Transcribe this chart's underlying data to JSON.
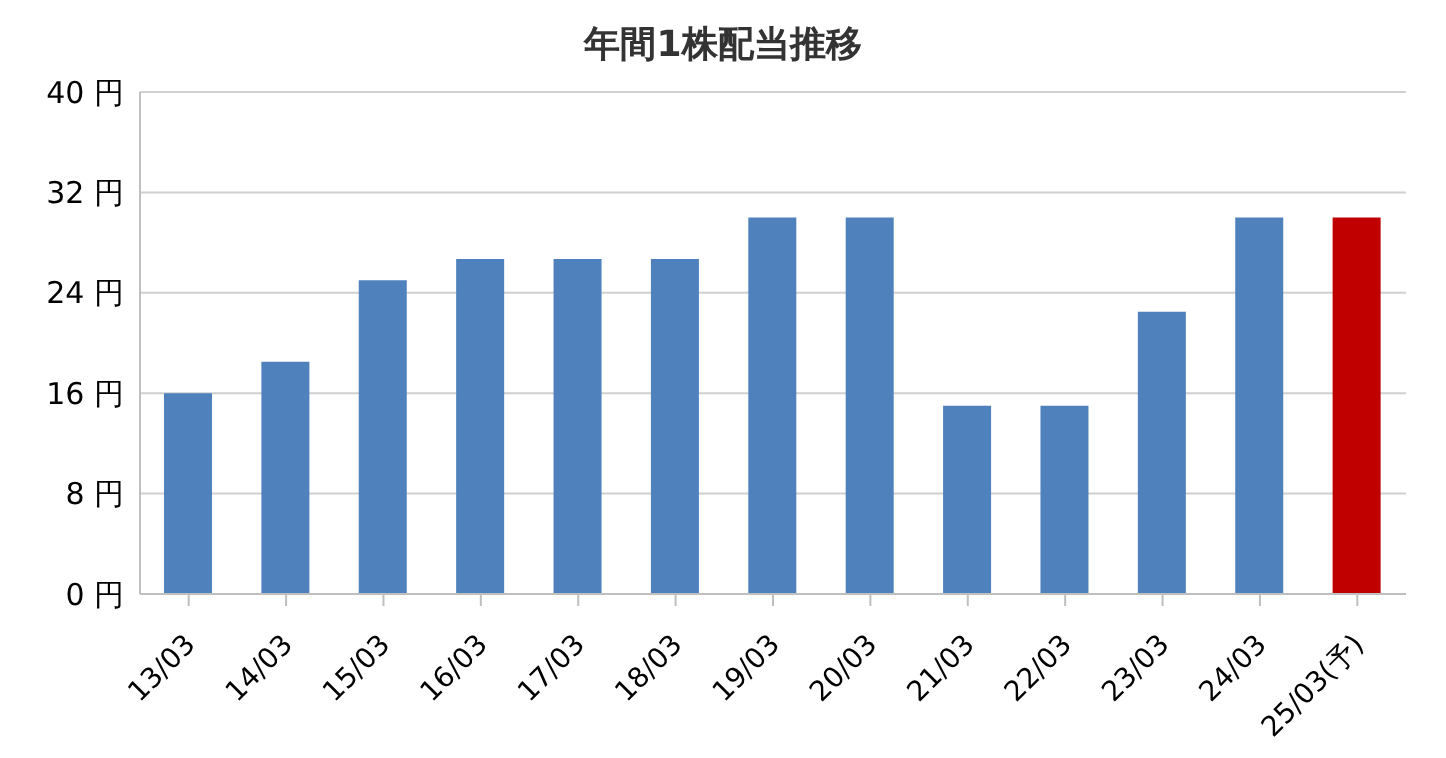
{
  "chart_data": {
    "type": "bar",
    "title": "年間1株配当推移",
    "categories": [
      "13/03",
      "14/03",
      "15/03",
      "16/03",
      "17/03",
      "18/03",
      "19/03",
      "20/03",
      "21/03",
      "22/03",
      "23/03",
      "24/03",
      "25/03(予)"
    ],
    "values": [
      16,
      18.5,
      25,
      26.7,
      26.7,
      26.7,
      30,
      30,
      15,
      15,
      22.5,
      30,
      30
    ],
    "colors": [
      "#4f81bd",
      "#4f81bd",
      "#4f81bd",
      "#4f81bd",
      "#4f81bd",
      "#4f81bd",
      "#4f81bd",
      "#4f81bd",
      "#4f81bd",
      "#4f81bd",
      "#4f81bd",
      "#4f81bd",
      "#c00000"
    ],
    "ylim": [
      0,
      40
    ],
    "yticks": [
      {
        "value": 0,
        "label": "0 円"
      },
      {
        "value": 8,
        "label": "8 円"
      },
      {
        "value": 16,
        "label": "16 円"
      },
      {
        "value": 24,
        "label": "24 円"
      },
      {
        "value": 32,
        "label": "32 円"
      },
      {
        "value": 40,
        "label": "40 円"
      }
    ],
    "grid": "y"
  }
}
